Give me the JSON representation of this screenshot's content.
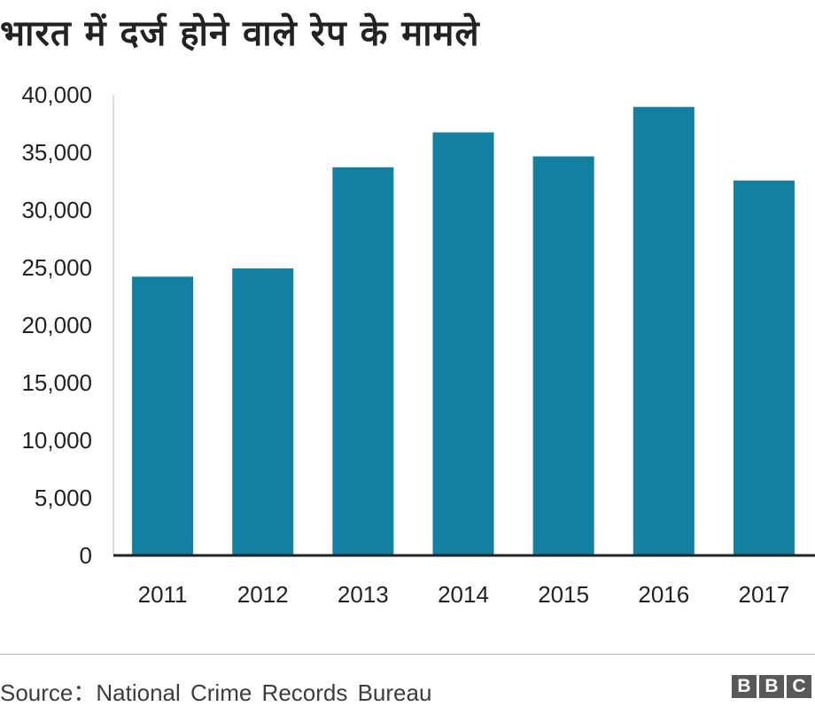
{
  "chart_data": {
    "type": "bar",
    "title": "भारत में दर्ज होने वाले रेप के मामले",
    "categories": [
      "2011",
      "2012",
      "2013",
      "2014",
      "2015",
      "2016",
      "2017"
    ],
    "values": [
      24206,
      24923,
      33707,
      36735,
      34651,
      38947,
      32559
    ],
    "ylim": [
      0,
      40000
    ],
    "yticks": [
      0,
      5000,
      10000,
      15000,
      20000,
      25000,
      30000,
      35000,
      40000
    ],
    "ytick_labels": [
      "0",
      "5,000",
      "10,000",
      "15,000",
      "20,000",
      "25,000",
      "30,000",
      "35,000",
      "40,000"
    ],
    "xlabel": "",
    "ylabel": "",
    "grid": false,
    "bar_color": "#1380a1"
  },
  "footer": {
    "source": "Source：National Crime Records Bureau",
    "logo_letters": [
      "B",
      "B",
      "C"
    ],
    "logo_color": "#595959"
  }
}
